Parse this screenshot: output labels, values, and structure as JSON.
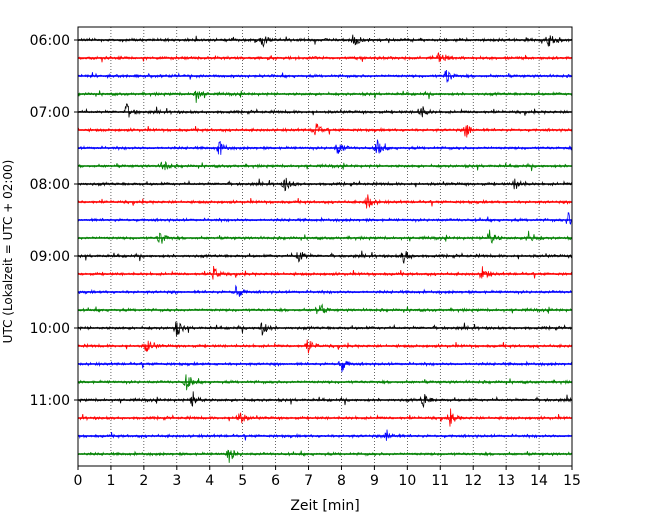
{
  "chart_data": {
    "type": "line",
    "title": "",
    "xlabel": "Zeit  [min]",
    "ylabel": "UTC (Lokalzeit = UTC + 02:00)",
    "xlim": [
      0,
      15
    ],
    "x_ticks": [
      0,
      1,
      2,
      3,
      4,
      5,
      6,
      7,
      8,
      9,
      10,
      11,
      12,
      13,
      14,
      15
    ],
    "x_tick_labels": [
      "0",
      "1",
      "2",
      "3",
      "4",
      "5",
      "6",
      "7",
      "8",
      "9",
      "10",
      "11",
      "12",
      "13",
      "14",
      "15"
    ],
    "grid": "vertical dotted at each minute",
    "y_tick_labels": [
      "06:00",
      "07:00",
      "08:00",
      "09:00",
      "10:00",
      "11:00"
    ],
    "trace_interval_minutes": 15,
    "color_cycle": [
      "#000000",
      "#ff0000",
      "#0000ff",
      "#008000"
    ],
    "series": [
      {
        "start": "06:00",
        "events": [
          5.6,
          8.4,
          14.3
        ]
      },
      {
        "start": "06:15",
        "events": [
          11.0
        ]
      },
      {
        "start": "06:30",
        "events": [
          11.2
        ]
      },
      {
        "start": "06:45",
        "events": [
          3.6
        ]
      },
      {
        "start": "07:00",
        "events": [
          1.5,
          10.4
        ]
      },
      {
        "start": "07:15",
        "events": [
          7.2,
          11.8
        ]
      },
      {
        "start": "07:30",
        "events": [
          4.3,
          7.9,
          9.1
        ]
      },
      {
        "start": "07:45",
        "events": [
          2.6
        ]
      },
      {
        "start": "08:00",
        "events": [
          6.3,
          13.3
        ]
      },
      {
        "start": "08:15",
        "events": [
          8.8
        ]
      },
      {
        "start": "08:30",
        "events": [
          14.9
        ]
      },
      {
        "start": "08:45",
        "events": [
          2.5,
          12.5,
          13.7
        ]
      },
      {
        "start": "09:00",
        "events": [
          6.7,
          9.9
        ]
      },
      {
        "start": "09:15",
        "events": [
          4.1,
          12.3
        ]
      },
      {
        "start": "09:30",
        "events": [
          4.8
        ]
      },
      {
        "start": "09:45",
        "events": [
          7.3
        ]
      },
      {
        "start": "10:00",
        "events": [
          3.0,
          5.6
        ]
      },
      {
        "start": "10:15",
        "events": [
          2.1,
          7.0
        ]
      },
      {
        "start": "10:30",
        "events": [
          8.0
        ]
      },
      {
        "start": "10:45",
        "events": [
          3.3
        ]
      },
      {
        "start": "11:00",
        "events": [
          3.5,
          10.5
        ]
      },
      {
        "start": "11:15",
        "events": [
          4.9,
          11.3
        ]
      },
      {
        "start": "11:30",
        "events": [
          9.4
        ]
      },
      {
        "start": "11:45",
        "events": [
          4.6
        ]
      }
    ]
  }
}
